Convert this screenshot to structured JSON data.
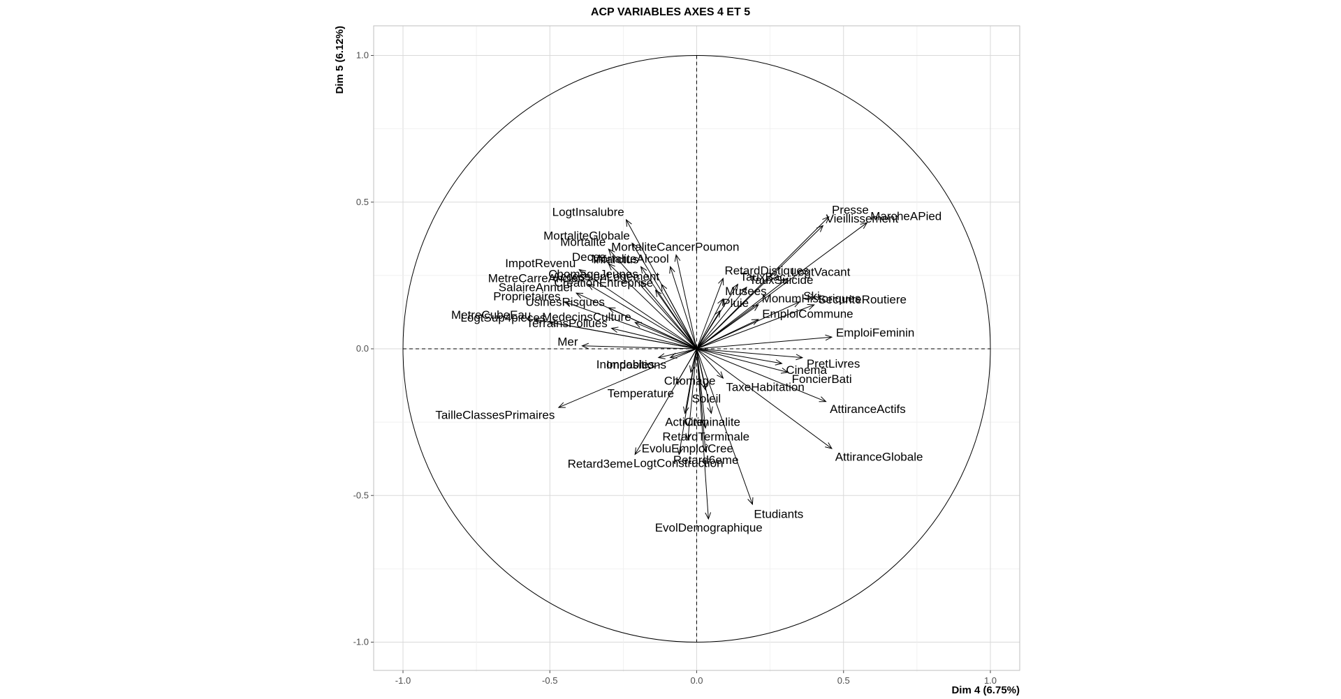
{
  "chart_data": {
    "type": "scatter",
    "subtype": "pca-correlation-circle",
    "title": "ACP VARIABLES AXES 4 ET 5",
    "xlabel": "Dim 4 (6.75%)",
    "ylabel": "Dim 5 (6.12%)",
    "xlim": [
      -1.1,
      1.1
    ],
    "ylim": [
      -1.1,
      1.1
    ],
    "xticks": [
      "-1.0",
      "-0.5",
      "0.0",
      "0.5",
      "1.0"
    ],
    "yticks": [
      "-1.0",
      "-0.5",
      "0.0",
      "0.5",
      "1.0"
    ],
    "grid": true,
    "unit_circle": true,
    "variables": [
      {
        "name": "Presse",
        "x": 0.45,
        "y": 0.45
      },
      {
        "name": "Vieillissement",
        "x": 0.43,
        "y": 0.42
      },
      {
        "name": "MarcheAPied",
        "x": 0.58,
        "y": 0.43
      },
      {
        "name": "LogtInsalubre",
        "x": -0.24,
        "y": 0.44
      },
      {
        "name": "MortaliteGlobale",
        "x": -0.22,
        "y": 0.36
      },
      {
        "name": "MortaliteCancerPoumon",
        "x": -0.07,
        "y": 0.32
      },
      {
        "name": "Mortalite",
        "x": -0.3,
        "y": 0.34
      },
      {
        "name": "MortaliteAlcool",
        "x": -0.09,
        "y": 0.28
      },
      {
        "name": "ImpotRevenu",
        "x": -0.4,
        "y": 0.27
      },
      {
        "name": "Deces",
        "x": -0.3,
        "y": 0.29
      },
      {
        "name": "Infarctus",
        "x": -0.19,
        "y": 0.28
      },
      {
        "name": "ChomageJeunes",
        "x": -0.19,
        "y": 0.23
      },
      {
        "name": "MetreCarreAncien",
        "x": -0.37,
        "y": 0.22
      },
      {
        "name": "AccessionLogement",
        "x": -0.12,
        "y": 0.22
      },
      {
        "name": "SalaireAnnuel",
        "x": -0.41,
        "y": 0.19
      },
      {
        "name": "CreationEntreprise",
        "x": -0.14,
        "y": 0.2
      },
      {
        "name": "Proprietaires",
        "x": -0.45,
        "y": 0.16
      },
      {
        "name": "UsinesRisques",
        "x": -0.3,
        "y": 0.14
      },
      {
        "name": "MetreCubeEau",
        "x": -0.55,
        "y": 0.1
      },
      {
        "name": "LogtSup4pieces",
        "x": -0.5,
        "y": 0.09
      },
      {
        "name": "MedecinsCulture",
        "x": -0.21,
        "y": 0.09
      },
      {
        "name": "TerrainsPollues",
        "x": -0.29,
        "y": 0.07
      },
      {
        "name": "Mer",
        "x": -0.39,
        "y": 0.01
      },
      {
        "name": "Impositions",
        "x": -0.09,
        "y": -0.03
      },
      {
        "name": "Inondables",
        "x": -0.13,
        "y": -0.03
      },
      {
        "name": "Chomage",
        "x": -0.02,
        "y": -0.08
      },
      {
        "name": "Temperature",
        "x": -0.07,
        "y": -0.12
      },
      {
        "name": "TailleClassesPrimaires",
        "x": -0.47,
        "y": -0.2
      },
      {
        "name": "Activite",
        "x": -0.04,
        "y": -0.22
      },
      {
        "name": "EvoluEmploiCree",
        "x": -0.03,
        "y": -0.31
      },
      {
        "name": "LogtConstruction",
        "x": -0.06,
        "y": -0.36
      },
      {
        "name": "Retard3eme",
        "x": -0.21,
        "y": -0.36
      },
      {
        "name": "RetardDistiques",
        "x": 0.09,
        "y": 0.24
      },
      {
        "name": "TauxBac",
        "x": 0.14,
        "y": 0.22
      },
      {
        "name": "TauxSuicide",
        "x": 0.17,
        "y": 0.21
      },
      {
        "name": "LogtVacant",
        "x": 0.31,
        "y": 0.24
      },
      {
        "name": "Musees",
        "x": 0.09,
        "y": 0.17
      },
      {
        "name": "Ski",
        "x": 0.35,
        "y": 0.16
      },
      {
        "name": "Pluie",
        "x": 0.08,
        "y": 0.13
      },
      {
        "name": "MonumHistoriques",
        "x": 0.21,
        "y": 0.15
      },
      {
        "name": "SecuriteRoutiere",
        "x": 0.4,
        "y": 0.15
      },
      {
        "name": "EmploiCommune",
        "x": 0.21,
        "y": 0.1
      },
      {
        "name": "EmploiFeminin",
        "x": 0.46,
        "y": 0.04
      },
      {
        "name": "PretLivres",
        "x": 0.36,
        "y": -0.03
      },
      {
        "name": "FoncierBati",
        "x": 0.31,
        "y": -0.08
      },
      {
        "name": "Cinema",
        "x": 0.29,
        "y": -0.05
      },
      {
        "name": "TaxeHabitation",
        "x": 0.09,
        "y": -0.1
      },
      {
        "name": "Soleil",
        "x": 0.03,
        "y": -0.14
      },
      {
        "name": "AttiranceActifs",
        "x": 0.44,
        "y": -0.18
      },
      {
        "name": "Criminalite",
        "x": 0.05,
        "y": -0.22
      },
      {
        "name": "RetardTerminale",
        "x": 0.03,
        "y": -0.27
      },
      {
        "name": "AttiranceGlobale",
        "x": 0.46,
        "y": -0.34
      },
      {
        "name": "Retard6eme",
        "x": 0.03,
        "y": -0.35
      },
      {
        "name": "Etudiants",
        "x": 0.19,
        "y": -0.53
      },
      {
        "name": "EvolDemographique",
        "x": 0.04,
        "y": -0.58
      }
    ]
  }
}
